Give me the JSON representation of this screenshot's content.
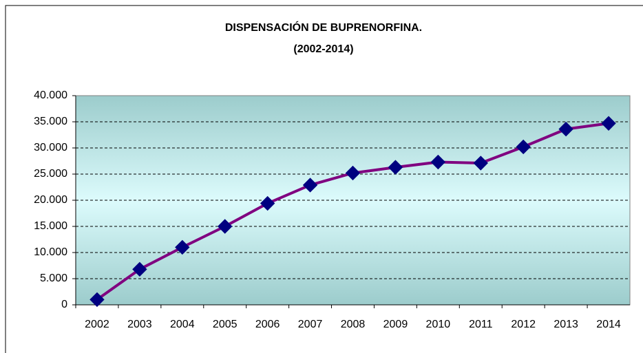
{
  "chart_data": {
    "type": "line",
    "title": "DISPENSACIÓN DE BUPRENORFINA.",
    "subtitle": "(2002-2014)",
    "categories": [
      "2002",
      "2003",
      "2004",
      "2005",
      "2006",
      "2007",
      "2008",
      "2009",
      "2010",
      "2011",
      "2012",
      "2013",
      "2014"
    ],
    "series": [
      {
        "name": "Buprenorfina",
        "color": "#800080",
        "marker_color": "#000080",
        "values": [
          1000,
          6800,
          11000,
          15000,
          19400,
          22900,
          25200,
          26300,
          27300,
          27100,
          30200,
          33600,
          34700
        ]
      }
    ],
    "ylim": [
      0,
      40000
    ],
    "yticks": [
      0,
      {
        "value": 5000,
        "label": "5.000"
      },
      {
        "value": 10000,
        "label": "10.000"
      },
      {
        "value": 15000,
        "label": "15.000"
      },
      {
        "value": 20000,
        "label": "20.000"
      },
      {
        "value": 25000,
        "label": "25.000"
      },
      {
        "value": 30000,
        "label": "30.000"
      },
      {
        "value": 35000,
        "label": "35.000"
      },
      {
        "value": 40000,
        "label": "40.000"
      }
    ],
    "grid": true
  }
}
